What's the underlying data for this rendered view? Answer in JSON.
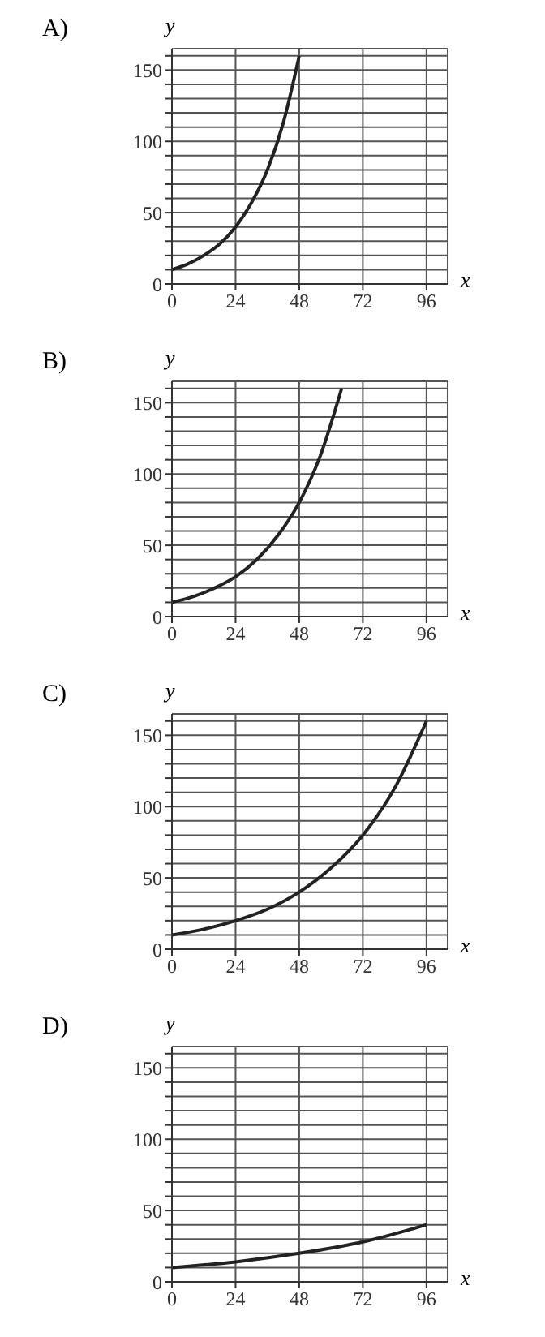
{
  "chart_data": [
    {
      "type": "line",
      "title": "A)",
      "xlabel": "x",
      "ylabel": "y",
      "x": [
        0,
        6,
        12,
        18,
        24,
        30,
        36,
        42,
        48
      ],
      "series": [
        {
          "color": "#222222",
          "values": [
            10,
            14,
            20,
            28,
            40,
            57,
            80,
            113,
            160
          ]
        }
      ],
      "xlim": [
        0,
        104
      ],
      "ylim": [
        0,
        165
      ],
      "xticks": [
        0,
        24,
        48,
        72,
        96
      ],
      "yticks": [
        0,
        {
          "value": 10,
          "label": null
        },
        {
          "value": 20,
          "label": null
        },
        {
          "value": 30,
          "label": null
        },
        {
          "value": 40,
          "label": null
        },
        50,
        {
          "value": 60,
          "label": null
        },
        {
          "value": 70,
          "label": null
        },
        {
          "value": 80,
          "label": null
        },
        {
          "value": 90,
          "label": null
        },
        100,
        {
          "value": 110,
          "label": null
        },
        {
          "value": 120,
          "label": null
        },
        {
          "value": 130,
          "label": null
        },
        {
          "value": 140,
          "label": null
        },
        150,
        {
          "value": 160,
          "label": null
        }
      ],
      "grid": true,
      "marker": "none",
      "line_style": "solid"
    },
    {
      "type": "line",
      "title": "B)",
      "xlabel": "x",
      "ylabel": "y",
      "x": [
        0,
        8,
        16,
        24,
        32,
        40,
        48,
        56,
        64
      ],
      "series": [
        {
          "color": "#222222",
          "values": [
            10,
            14,
            20,
            28,
            40,
            57,
            80,
            113,
            160
          ]
        }
      ],
      "xlim": [
        0,
        104
      ],
      "ylim": [
        0,
        165
      ],
      "xticks": [
        0,
        24,
        48,
        72,
        96
      ],
      "yticks": [
        0,
        {
          "value": 10,
          "label": null
        },
        {
          "value": 20,
          "label": null
        },
        {
          "value": 30,
          "label": null
        },
        {
          "value": 40,
          "label": null
        },
        50,
        {
          "value": 60,
          "label": null
        },
        {
          "value": 70,
          "label": null
        },
        {
          "value": 80,
          "label": null
        },
        {
          "value": 90,
          "label": null
        },
        100,
        {
          "value": 110,
          "label": null
        },
        {
          "value": 120,
          "label": null
        },
        {
          "value": 130,
          "label": null
        },
        {
          "value": 140,
          "label": null
        },
        150,
        {
          "value": 160,
          "label": null
        }
      ],
      "grid": true,
      "marker": "none",
      "line_style": "solid"
    },
    {
      "type": "line",
      "title": "C)",
      "xlabel": "x",
      "ylabel": "y",
      "x": [
        0,
        12,
        24,
        36,
        48,
        60,
        72,
        84,
        96
      ],
      "series": [
        {
          "color": "#222222",
          "values": [
            10,
            14,
            20,
            28,
            40,
            57,
            80,
            113,
            160
          ]
        }
      ],
      "xlim": [
        0,
        104
      ],
      "ylim": [
        0,
        165
      ],
      "xticks": [
        0,
        24,
        48,
        72,
        96
      ],
      "yticks": [
        0,
        {
          "value": 10,
          "label": null
        },
        {
          "value": 20,
          "label": null
        },
        {
          "value": 30,
          "label": null
        },
        {
          "value": 40,
          "label": null
        },
        50,
        {
          "value": 60,
          "label": null
        },
        {
          "value": 70,
          "label": null
        },
        {
          "value": 80,
          "label": null
        },
        {
          "value": 90,
          "label": null
        },
        100,
        {
          "value": 110,
          "label": null
        },
        {
          "value": 120,
          "label": null
        },
        {
          "value": 130,
          "label": null
        },
        {
          "value": 140,
          "label": null
        },
        150,
        {
          "value": 160,
          "label": null
        }
      ],
      "grid": true,
      "marker": "none",
      "line_style": "solid"
    },
    {
      "type": "line",
      "title": "D)",
      "xlabel": "x",
      "ylabel": "y",
      "x": [
        0,
        24,
        48,
        72,
        96
      ],
      "series": [
        {
          "color": "#222222",
          "values": [
            10,
            14,
            20,
            28,
            40
          ]
        }
      ],
      "xlim": [
        0,
        104
      ],
      "ylim": [
        0,
        165
      ],
      "xticks": [
        0,
        24,
        48,
        72,
        96
      ],
      "yticks": [
        0,
        {
          "value": 10,
          "label": null
        },
        {
          "value": 20,
          "label": null
        },
        {
          "value": 30,
          "label": null
        },
        {
          "value": 40,
          "label": null
        },
        50,
        {
          "value": 60,
          "label": null
        },
        {
          "value": 70,
          "label": null
        },
        {
          "value": 80,
          "label": null
        },
        {
          "value": 90,
          "label": null
        },
        100,
        {
          "value": 110,
          "label": null
        },
        {
          "value": 120,
          "label": null
        },
        {
          "value": 130,
          "label": null
        },
        {
          "value": 140,
          "label": null
        },
        150,
        {
          "value": 160,
          "label": null
        }
      ],
      "grid": true,
      "marker": "none",
      "line_style": "solid"
    }
  ]
}
